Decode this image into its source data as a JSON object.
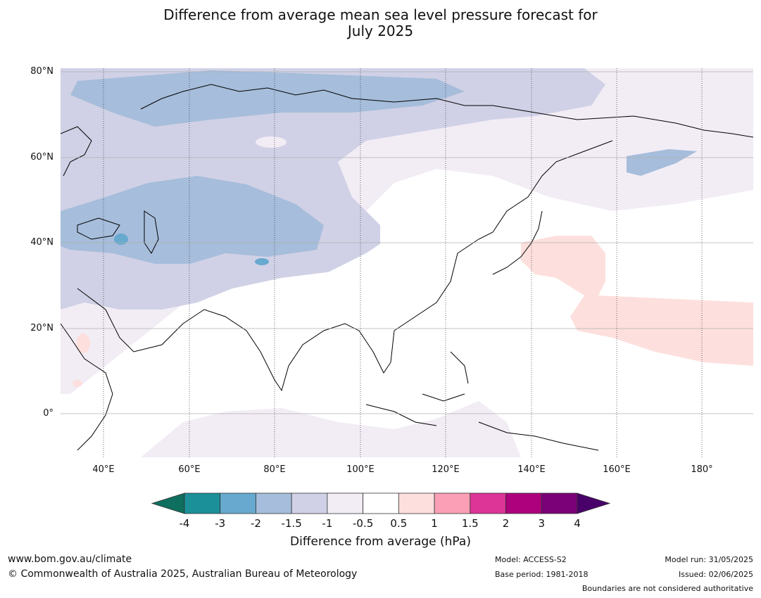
{
  "title_line1": "Difference from average mean sea level pressure forecast for",
  "title_line2": "July 2025",
  "map": {
    "lat_labels": [
      "80°N",
      "60°N",
      "40°N",
      "20°N",
      "0°"
    ],
    "lon_labels": [
      "40°E",
      "60°E",
      "80°E",
      "100°E",
      "120°E",
      "140°E",
      "160°E",
      "180°"
    ],
    "lat_range": [
      -10,
      81
    ],
    "lon_range": [
      30,
      192
    ]
  },
  "colorbar": {
    "title": "Difference from average (hPa)",
    "ticks": [
      "-4",
      "-3",
      "-2",
      "-1.5",
      "-1",
      "-0.5",
      "0.5",
      "1",
      "1.5",
      "2",
      "3",
      "4"
    ],
    "colors": [
      "#0e6f5e",
      "#1c9099",
      "#67a9cf",
      "#a6bddb",
      "#d0d1e6",
      "#f2ecf5",
      "#ffffff",
      "#fde0dd",
      "#fa9fb5",
      "#dd3497",
      "#ae017e",
      "#7a0177",
      "#49006a"
    ]
  },
  "footer": {
    "url": "www.bom.gov.au/climate",
    "copyright": "© Commonwealth of Australia 2025, Australian Bureau of Meteorology",
    "model": "Model: ACCESS-S2",
    "base_period": "Base period: 1981-2018",
    "model_run": "Model run: 31/05/2025",
    "issued": "Issued: 02/06/2025",
    "disclaimer": "Boundaries are not considered authoritative"
  }
}
